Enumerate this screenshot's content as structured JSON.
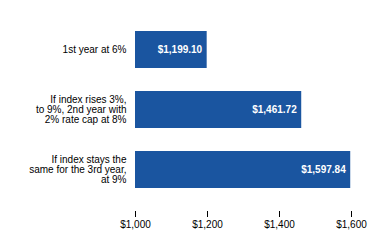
{
  "chart_data": {
    "type": "bar",
    "orientation": "horizontal",
    "categories": [
      "1st year at 6%",
      "If index rises 3%,\nto 9%, 2nd year with\n2% rate cap at 8%",
      "If index stays the\nsame for the 3rd year,\nat 9%"
    ],
    "values": [
      1199.1,
      1461.72,
      1597.84
    ],
    "value_labels": [
      "$1,199.10",
      "$1,461.72",
      "$1,597.84"
    ],
    "data_labels": true,
    "color": "#1a55a0",
    "xlim": [
      1000,
      1600
    ],
    "xticks": [
      {
        "value": 1000,
        "label": "$1,000"
      },
      {
        "value": 1200,
        "label": "$1,200"
      },
      {
        "value": 1400,
        "label": "$1,400"
      },
      {
        "value": 1600,
        "label": "$1,600"
      }
    ]
  }
}
